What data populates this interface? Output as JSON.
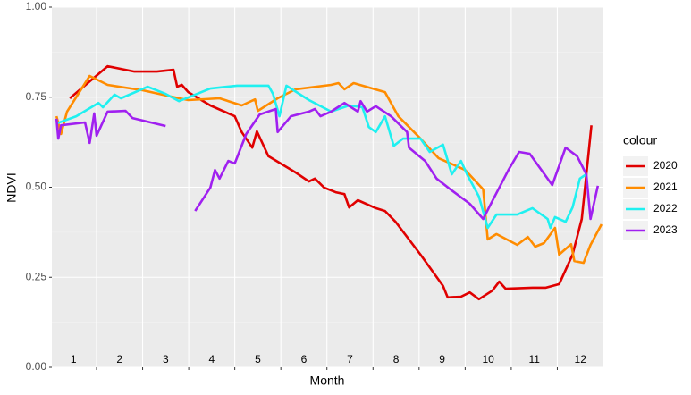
{
  "chart_data": {
    "type": "line",
    "xlabel": "Month",
    "ylabel": "NDVI",
    "legend_title": "colour",
    "legend": "right",
    "grid": true,
    "xlim": [
      0.53,
      12.5
    ],
    "xticks": [
      1,
      2,
      3,
      4,
      5,
      6,
      7,
      8,
      9,
      10,
      11,
      12
    ],
    "xgrid": [
      1.5,
      2.5,
      3.5,
      4.5,
      5.5,
      6.5,
      7.5,
      8.5,
      9.5,
      10.5,
      11.5
    ],
    "ylim": [
      0,
      1
    ],
    "yticks": [
      {
        "value": 0,
        "label": "0.00"
      },
      {
        "value": 0.25,
        "label": "0.25"
      },
      {
        "value": 0.5,
        "label": "0.50"
      },
      {
        "value": 0.75,
        "label": "0.75"
      },
      {
        "value": 1,
        "label": "1.00"
      }
    ],
    "series": [
      {
        "name": "2020",
        "color": "#e00000",
        "x": [
          0.92,
          1.74,
          2.32,
          2.81,
          3.17,
          3.25,
          3.35,
          3.49,
          3.97,
          4.5,
          4.65,
          4.88,
          4.98,
          5.23,
          5.82,
          6.11,
          6.24,
          6.44,
          6.69,
          6.88,
          6.98,
          7.17,
          7.56,
          7.76,
          7.99,
          8.53,
          9.02,
          9.12,
          9.41,
          9.6,
          9.8,
          10.09,
          10.24,
          10.38,
          10.96,
          11.25,
          11.54,
          11.83,
          12.03,
          12.24
        ],
        "values": [
          0.747,
          0.836,
          0.821,
          0.821,
          0.826,
          0.779,
          0.784,
          0.764,
          0.727,
          0.697,
          0.653,
          0.61,
          0.655,
          0.586,
          0.541,
          0.516,
          0.524,
          0.499,
          0.486,
          0.481,
          0.444,
          0.464,
          0.442,
          0.434,
          0.404,
          0.313,
          0.226,
          0.194,
          0.196,
          0.208,
          0.189,
          0.213,
          0.238,
          0.218,
          0.221,
          0.221,
          0.231,
          0.313,
          0.412,
          0.672
        ]
      },
      {
        "name": "2021",
        "color": "#ff8c00",
        "x": [
          0.63,
          0.73,
          0.86,
          1.35,
          1.74,
          2.51,
          3.1,
          3.49,
          4.17,
          4.65,
          4.94,
          5.0,
          5.43,
          5.82,
          6.59,
          6.75,
          6.88,
          7.08,
          7.76,
          8.05,
          8.53,
          8.92,
          9.5,
          9.89,
          9.99,
          10.18,
          10.63,
          10.86,
          11.02,
          11.21,
          11.45,
          11.54,
          11.8,
          11.87,
          12.07,
          12.22,
          12.46
        ],
        "values": [
          0.697,
          0.648,
          0.71,
          0.809,
          0.784,
          0.769,
          0.752,
          0.742,
          0.747,
          0.727,
          0.744,
          0.712,
          0.747,
          0.772,
          0.784,
          0.789,
          0.772,
          0.789,
          0.764,
          0.697,
          0.635,
          0.581,
          0.548,
          0.494,
          0.355,
          0.37,
          0.34,
          0.362,
          0.335,
          0.345,
          0.387,
          0.313,
          0.342,
          0.295,
          0.29,
          0.34,
          0.397
        ]
      },
      {
        "name": "2022",
        "color": "#1ff0f0",
        "x": [
          0.63,
          1.06,
          1.54,
          1.64,
          1.89,
          2.03,
          2.61,
          3.0,
          3.29,
          3.97,
          4.55,
          5.23,
          5.33,
          5.47,
          5.62,
          6.11,
          6.59,
          6.98,
          7.27,
          7.41,
          7.56,
          7.76,
          7.95,
          8.15,
          8.53,
          8.73,
          9.02,
          9.21,
          9.41,
          9.54,
          9.8,
          9.99,
          10.18,
          10.63,
          10.96,
          11.29,
          11.35,
          11.45,
          11.68,
          11.83,
          11.99,
          12.13
        ],
        "values": [
          0.677,
          0.697,
          0.734,
          0.722,
          0.757,
          0.747,
          0.779,
          0.759,
          0.739,
          0.774,
          0.782,
          0.782,
          0.759,
          0.697,
          0.782,
          0.742,
          0.71,
          0.727,
          0.722,
          0.667,
          0.653,
          0.697,
          0.615,
          0.635,
          0.635,
          0.598,
          0.618,
          0.536,
          0.573,
          0.536,
          0.474,
          0.387,
          0.424,
          0.424,
          0.442,
          0.412,
          0.387,
          0.417,
          0.404,
          0.444,
          0.524,
          0.536
        ]
      },
      {
        "name": "2023",
        "color": "#a020f0",
        "x": [
          0.63,
          0.67,
          0.73,
          1.25,
          1.35,
          1.45,
          1.5,
          1.74,
          2.13,
          2.28,
          3.0,
          null,
          3.64,
          3.97,
          4.07,
          4.17,
          4.36,
          4.5,
          4.75,
          5.04,
          5.39,
          5.43,
          5.72,
          6.11,
          6.24,
          6.36,
          6.59,
          6.88,
          7.17,
          7.23,
          7.37,
          7.56,
          7.89,
          8.24,
          8.28,
          8.63,
          8.88,
          9.21,
          9.6,
          9.89,
          10.09,
          10.44,
          10.67,
          10.9,
          11.39,
          11.68,
          11.93,
          12.13,
          12.22,
          12.38
        ],
        "values": [
          0.69,
          0.635,
          0.672,
          0.68,
          0.623,
          0.705,
          0.643,
          0.71,
          0.712,
          0.692,
          0.67,
          null,
          0.434,
          0.499,
          0.548,
          0.524,
          0.573,
          0.566,
          0.648,
          0.702,
          0.717,
          0.653,
          0.697,
          0.71,
          0.717,
          0.697,
          0.71,
          0.734,
          0.71,
          0.739,
          0.71,
          0.725,
          0.697,
          0.653,
          0.61,
          0.573,
          0.524,
          0.491,
          0.454,
          0.412,
          0.462,
          0.548,
          0.598,
          0.593,
          0.506,
          0.61,
          0.586,
          0.536,
          0.412,
          0.504
        ]
      }
    ]
  }
}
